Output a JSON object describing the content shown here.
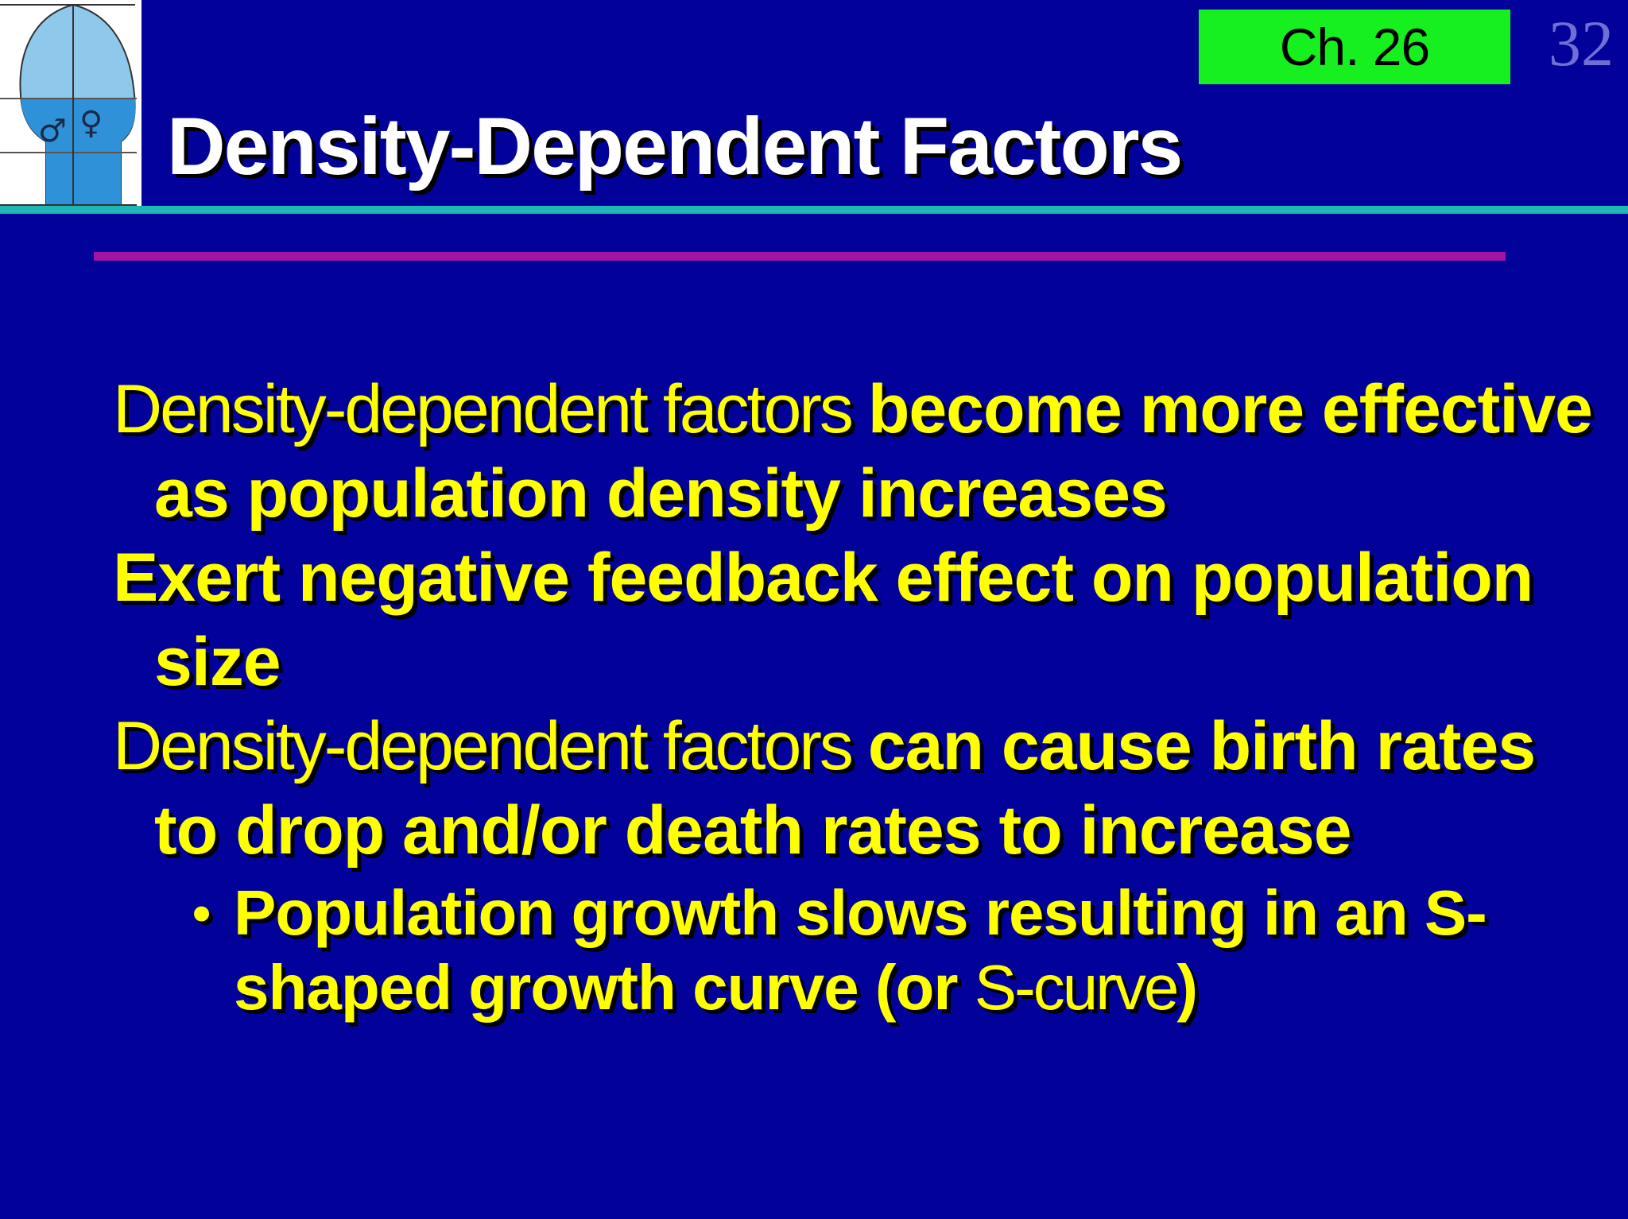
{
  "slide": {
    "chapter_label": "Ch. 26",
    "page_number": "32",
    "title": "Density-Dependent Factors",
    "colors": {
      "background": "#02029a",
      "title": "#ffffff",
      "body_text": "#ffff00",
      "chapter_badge": "#16f01e",
      "header_rule": "#1fb6b6",
      "accent_rule": "#a114a1"
    },
    "logo": {
      "icon": "population-flask-logo",
      "male_symbol": "♂",
      "female_symbol": "♀"
    },
    "points": [
      {
        "lead": "Density-dependent factors ",
        "emphasis": "become more effective as population density increases"
      },
      {
        "lead": "",
        "emphasis": "Exert negative feedback effect on population size"
      },
      {
        "lead": "Density-dependent factors ",
        "emphasis": "can cause birth rates to drop and/or death rates to increase"
      }
    ],
    "sub_point": {
      "bullet": "•",
      "emphasis": "Population growth slows resulting in an S-shaped growth curve (or ",
      "plain": "S-curve",
      "close": ")"
    }
  }
}
